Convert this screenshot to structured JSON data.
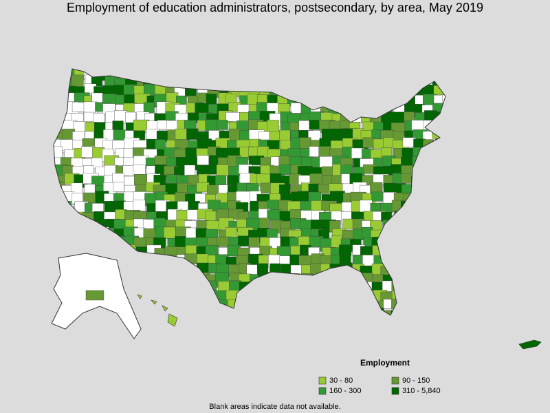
{
  "title": "Employment of education administrators, postsecondary, by area, May 2019",
  "legend": {
    "title": "Employment",
    "items": [
      {
        "label": "30 - 80",
        "color": "#99cc33"
      },
      {
        "label": "90 - 150",
        "color": "#669933"
      },
      {
        "label": "160 - 300",
        "color": "#339933"
      },
      {
        "label": "310 - 5,840",
        "color": "#006600"
      }
    ]
  },
  "footnote": "Blank areas indicate data not available."
}
